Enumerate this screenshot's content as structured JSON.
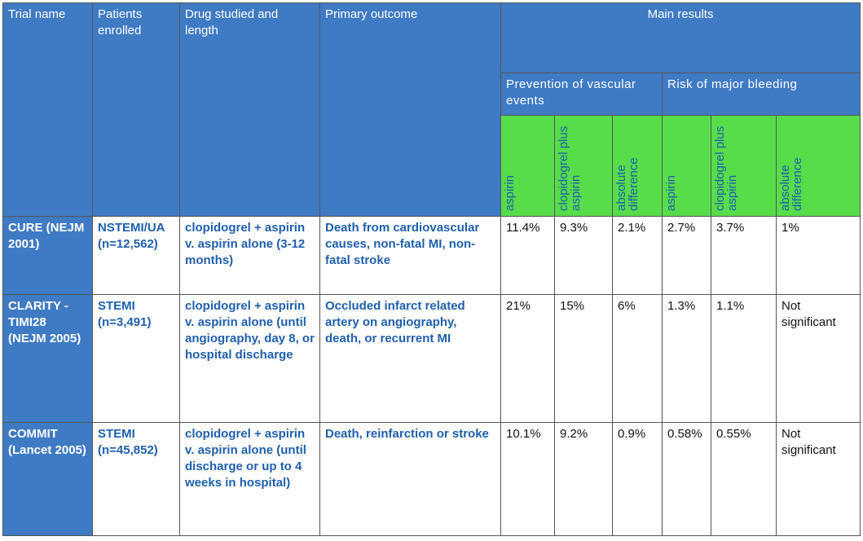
{
  "headers": {
    "trial_name": "Trial name",
    "patients": "Patients enrolled",
    "drug": "Drug studied and length",
    "outcome": "Primary outcome",
    "main_results": "Main results",
    "prevention": "Prevention of vascular events",
    "bleeding": "Risk of major bleeding",
    "col_aspirin": "aspirin",
    "col_clopidogrel": "clopidogrel plus aspirin",
    "col_abs_diff": "absolute difference"
  },
  "rows": [
    {
      "trial": "CURE (NEJM 2001)",
      "patients": "NSTEMI/UA (n=12,562)",
      "drug": "clopidogrel + aspirin v. aspirin alone (3-12 months)",
      "outcome": "Death from cardiovascular causes, non-fatal MI, non-fatal stroke",
      "prev_aspirin": "11.4%",
      "prev_clop": "9.3%",
      "prev_diff": "2.1%",
      "bleed_aspirin": "2.7%",
      "bleed_clop": "3.7%",
      "bleed_diff": "1%"
    },
    {
      "trial": "CLARITY -TIMI28 (NEJM 2005)",
      "patients": "STEMI (n=3,491)",
      "drug": "clopidogrel + aspirin v. aspirin alone (until angiography, day 8, or hospital discharge",
      "outcome": "Occluded infarct related artery on angiography, death, or recurrent MI",
      "prev_aspirin": "21%",
      "prev_clop": "15%",
      "prev_diff": "6%",
      "bleed_aspirin": "1.3%",
      "bleed_clop": "1.1%",
      "bleed_diff": "Not significant"
    },
    {
      "trial": "COMMIT (Lancet 2005)",
      "patients": "STEMI (n=45,852)",
      "drug": "clopidogrel + aspirin v. aspirin alone (until discharge or up to 4 weeks in hospital)",
      "outcome": "Death, reinfarction or stroke",
      "prev_aspirin": "10.1%",
      "prev_clop": "9.2%",
      "prev_diff": "0.9%",
      "bleed_aspirin": "0.58%",
      "bleed_clop": "0.55%",
      "bleed_diff": "Not significant"
    }
  ]
}
